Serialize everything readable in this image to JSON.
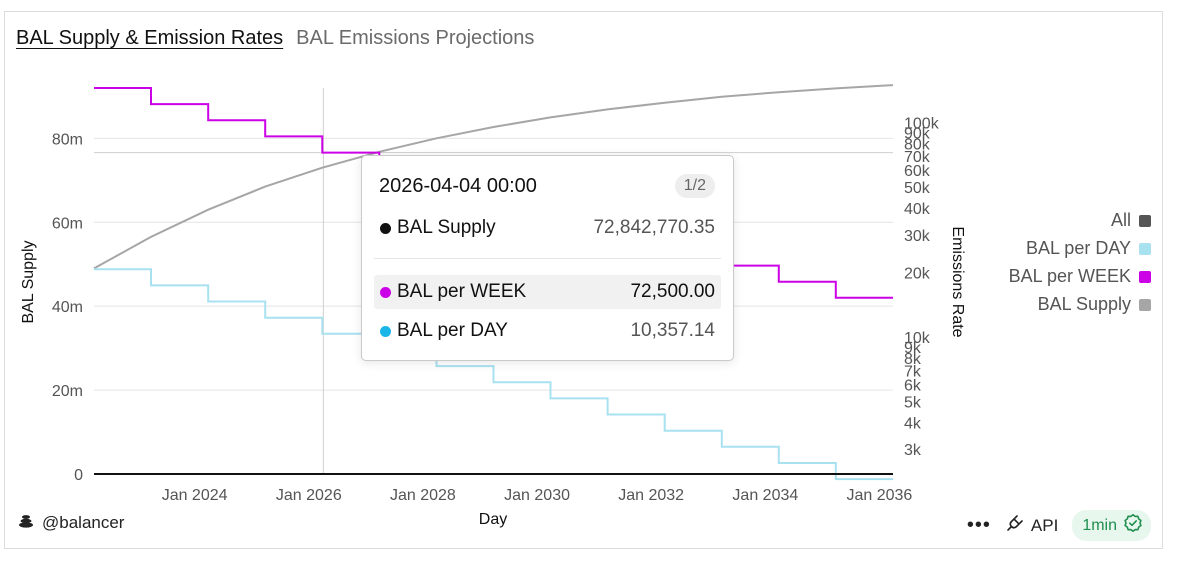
{
  "tabs": [
    {
      "label": "BAL Supply & Emission Rates",
      "active": true
    },
    {
      "label": "BAL Emissions Projections",
      "active": false
    }
  ],
  "chart_data": {
    "type": "line",
    "xlabel": "Day",
    "ylabel_left": "BAL Supply",
    "ylabel_right": "Emissions Rate",
    "x_ticks": [
      "Jan 2024",
      "Jan 2026",
      "Jan 2028",
      "Jan 2030",
      "Jan 2032",
      "Jan 2034",
      "Jan 2036"
    ],
    "x_range": [
      "2022-03-28",
      "2036-03-28"
    ],
    "y_left_ticks": [
      "0",
      "20m",
      "40m",
      "60m",
      "80m"
    ],
    "y_left_range": [
      0,
      92000000
    ],
    "y_right_scale": "log",
    "y_right_ticks": [
      "3k",
      "4k",
      "5k",
      "6k",
      "7k",
      "8k",
      "9k",
      "10k",
      "20k",
      "30k",
      "40k",
      "50k",
      "60k",
      "70k",
      "80k",
      "90k",
      "100k"
    ],
    "y_right_range": [
      2300,
      145000
    ],
    "series": [
      {
        "name": "BAL Supply",
        "axis": "left",
        "color": "#a6a6a6",
        "points": [
          [
            "2022-03-28",
            49000000
          ],
          [
            "2023-03-28",
            56500000
          ],
          [
            "2024-03-28",
            63000000
          ],
          [
            "2025-03-28",
            68500000
          ],
          [
            "2026-03-28",
            73000000
          ],
          [
            "2027-03-28",
            76800000
          ],
          [
            "2028-03-28",
            80000000
          ],
          [
            "2029-03-28",
            82700000
          ],
          [
            "2030-03-28",
            85000000
          ],
          [
            "2031-03-28",
            86900000
          ],
          [
            "2032-03-28",
            88500000
          ],
          [
            "2033-03-28",
            89900000
          ],
          [
            "2034-03-28",
            91000000
          ],
          [
            "2035-03-28",
            91900000
          ],
          [
            "2036-03-28",
            92700000
          ]
        ]
      },
      {
        "name": "BAL per WEEK",
        "axis": "right",
        "color": "#cc00e6",
        "step_starts": [
          "2022-03-28",
          "2023-03-28",
          "2024-03-28",
          "2025-03-28",
          "2026-03-28",
          "2027-03-28",
          "2028-03-28",
          "2029-03-28",
          "2030-03-28",
          "2031-03-28",
          "2032-03-28",
          "2033-03-28",
          "2034-03-28",
          "2035-03-28"
        ],
        "values": [
          145000,
          121929,
          102530,
          86217,
          72500,
          60965,
          51265,
          43109,
          36250,
          30483,
          25633,
          21554,
          18125,
          15241
        ],
        "end": "2036-03-28"
      },
      {
        "name": "BAL per DAY",
        "axis": "right",
        "color": "#a8e1f0",
        "step_starts": [
          "2022-03-28",
          "2023-03-28",
          "2024-03-28",
          "2025-03-28",
          "2026-03-28",
          "2027-03-28",
          "2028-03-28",
          "2029-03-28",
          "2030-03-28",
          "2031-03-28",
          "2032-03-28",
          "2033-03-28",
          "2034-03-28",
          "2035-03-28"
        ],
        "values": [
          20714,
          17418,
          14647,
          12317,
          10357,
          8709,
          7324,
          6158,
          5179,
          4355,
          3662,
          3079,
          2589,
          2177
        ],
        "end": "2036-03-28"
      }
    ],
    "crosshair_x": "2026-04-04",
    "legend_position": "right"
  },
  "legend": {
    "items": [
      {
        "label": "All",
        "color": "#555555"
      },
      {
        "label": "BAL per DAY",
        "color": "#a8e1f0"
      },
      {
        "label": "BAL per WEEK",
        "color": "#cc00e6"
      },
      {
        "label": "BAL Supply",
        "color": "#a6a6a6"
      }
    ]
  },
  "tooltip": {
    "date": "2026-04-04 00:00",
    "page": "1/2",
    "rows": [
      {
        "label": "BAL Supply",
        "value": "72,842,770.35",
        "color": "#111111"
      },
      {
        "label": "BAL per WEEK",
        "value": "72,500.00",
        "color": "#cc00e6"
      },
      {
        "label": "BAL per DAY",
        "value": "10,357.14",
        "color": "#1ab6e8"
      }
    ]
  },
  "footer": {
    "author": "@balancer",
    "api_label": "API",
    "refresh_label": "1min",
    "more_label": "•••"
  },
  "icons": {
    "author": "stacked-coins-icon",
    "api": "plug-icon",
    "refresh": "check-badge-icon"
  }
}
